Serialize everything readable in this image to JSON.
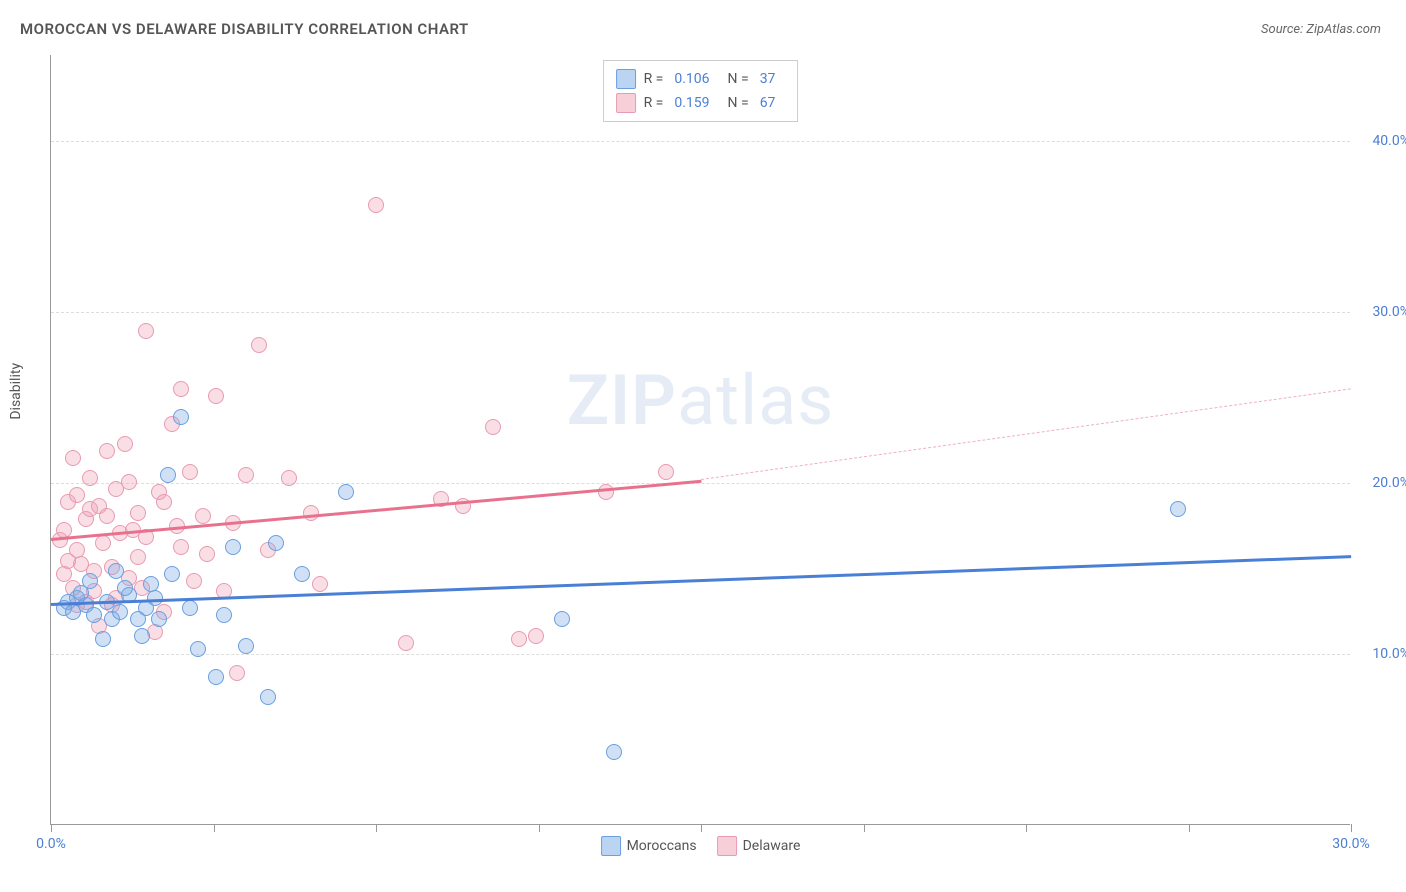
{
  "title": "MOROCCAN VS DELAWARE DISABILITY CORRELATION CHART",
  "source": "Source: ZipAtlas.com",
  "watermark_bold": "ZIP",
  "watermark_rest": "atlas",
  "y_axis_label": "Disability",
  "chart": {
    "type": "scatter",
    "xlim": [
      0,
      30
    ],
    "ylim": [
      0,
      45
    ],
    "y_ticks": [
      10,
      20,
      30,
      40
    ],
    "y_tick_labels": [
      "10.0%",
      "20.0%",
      "30.0%",
      "40.0%"
    ],
    "x_ticks": [
      0,
      3.75,
      7.5,
      11.25,
      15,
      18.75,
      22.5,
      26.25,
      30
    ],
    "x_tick_labels_left": "0.0%",
    "x_tick_labels_right": "30.0%",
    "background_color": "#ffffff",
    "grid_color": "#dddddd",
    "axis_color": "#999999",
    "tick_label_color": "#4a7fd6"
  },
  "series": {
    "moroccans": {
      "label": "Moroccans",
      "color_fill": "rgba(120,170,230,0.35)",
      "color_stroke": "#6b9fe0",
      "trend_color": "#4a7fd6",
      "R": "0.106",
      "N": "37",
      "trend": {
        "x1": 0,
        "y1": 13.0,
        "x2": 30,
        "y2": 15.8
      },
      "points": [
        [
          0.3,
          12.6
        ],
        [
          0.4,
          13.0
        ],
        [
          0.5,
          12.4
        ],
        [
          0.6,
          13.2
        ],
        [
          0.8,
          12.8
        ],
        [
          0.9,
          14.2
        ],
        [
          1.0,
          12.2
        ],
        [
          1.2,
          10.8
        ],
        [
          1.3,
          13.0
        ],
        [
          1.4,
          12.0
        ],
        [
          1.5,
          14.8
        ],
        [
          1.6,
          12.4
        ],
        [
          1.8,
          13.4
        ],
        [
          2.0,
          12.0
        ],
        [
          2.1,
          11.0
        ],
        [
          2.2,
          12.6
        ],
        [
          2.4,
          13.2
        ],
        [
          2.5,
          12.0
        ],
        [
          2.7,
          20.4
        ],
        [
          2.8,
          14.6
        ],
        [
          3.0,
          23.8
        ],
        [
          3.2,
          12.6
        ],
        [
          3.4,
          10.2
        ],
        [
          3.8,
          8.6
        ],
        [
          4.0,
          12.2
        ],
        [
          4.2,
          16.2
        ],
        [
          4.5,
          10.4
        ],
        [
          5.0,
          7.4
        ],
        [
          5.2,
          16.4
        ],
        [
          5.8,
          14.6
        ],
        [
          6.8,
          19.4
        ],
        [
          11.8,
          12.0
        ],
        [
          13.0,
          4.2
        ],
        [
          26.0,
          18.4
        ],
        [
          1.7,
          13.8
        ],
        [
          0.7,
          13.5
        ],
        [
          2.3,
          14.0
        ]
      ]
    },
    "delaware": {
      "label": "Delaware",
      "color_fill": "rgba(240,160,180,0.35)",
      "color_stroke": "#e89bb0",
      "trend_color": "#e8718e",
      "R": "0.159",
      "N": "67",
      "trend_solid": {
        "x1": 0,
        "y1": 16.8,
        "x2": 15,
        "y2": 20.2
      },
      "trend_dash": {
        "x1": 15,
        "y1": 20.2,
        "x2": 30,
        "y2": 25.5
      },
      "points": [
        [
          0.2,
          16.6
        ],
        [
          0.3,
          17.2
        ],
        [
          0.4,
          18.8
        ],
        [
          0.5,
          13.8
        ],
        [
          0.5,
          21.4
        ],
        [
          0.6,
          16.0
        ],
        [
          0.6,
          19.2
        ],
        [
          0.7,
          15.2
        ],
        [
          0.8,
          17.8
        ],
        [
          0.8,
          13.0
        ],
        [
          0.9,
          18.4
        ],
        [
          1.0,
          13.6
        ],
        [
          1.0,
          14.8
        ],
        [
          1.1,
          18.6
        ],
        [
          1.2,
          16.4
        ],
        [
          1.3,
          21.8
        ],
        [
          1.4,
          15.0
        ],
        [
          1.5,
          19.6
        ],
        [
          1.5,
          13.2
        ],
        [
          1.6,
          17.0
        ],
        [
          1.8,
          14.4
        ],
        [
          1.8,
          20.0
        ],
        [
          2.0,
          15.6
        ],
        [
          2.0,
          18.2
        ],
        [
          2.2,
          28.8
        ],
        [
          2.2,
          16.8
        ],
        [
          2.4,
          11.2
        ],
        [
          2.5,
          19.4
        ],
        [
          2.6,
          12.4
        ],
        [
          2.8,
          23.4
        ],
        [
          3.0,
          25.4
        ],
        [
          3.0,
          16.2
        ],
        [
          3.2,
          20.6
        ],
        [
          3.5,
          18.0
        ],
        [
          3.6,
          15.8
        ],
        [
          3.8,
          25.0
        ],
        [
          4.0,
          13.6
        ],
        [
          4.2,
          17.6
        ],
        [
          4.5,
          20.4
        ],
        [
          4.8,
          28.0
        ],
        [
          5.0,
          16.0
        ],
        [
          5.5,
          20.2
        ],
        [
          6.0,
          18.2
        ],
        [
          6.2,
          14.0
        ],
        [
          7.5,
          36.2
        ],
        [
          8.2,
          10.6
        ],
        [
          9.0,
          19.0
        ],
        [
          9.5,
          18.6
        ],
        [
          10.2,
          23.2
        ],
        [
          10.8,
          10.8
        ],
        [
          11.2,
          11.0
        ],
        [
          12.8,
          19.4
        ],
        [
          14.2,
          20.6
        ],
        [
          1.1,
          11.6
        ],
        [
          0.4,
          15.4
        ],
        [
          2.1,
          13.8
        ],
        [
          1.7,
          22.2
        ],
        [
          0.9,
          20.2
        ],
        [
          1.3,
          18.0
        ],
        [
          2.9,
          17.4
        ],
        [
          3.3,
          14.2
        ],
        [
          1.9,
          17.2
        ],
        [
          2.6,
          18.8
        ],
        [
          0.3,
          14.6
        ],
        [
          4.3,
          8.8
        ],
        [
          1.4,
          12.8
        ],
        [
          0.6,
          12.8
        ]
      ]
    }
  },
  "legend": {
    "R_label": "R =",
    "N_label": "N ="
  }
}
